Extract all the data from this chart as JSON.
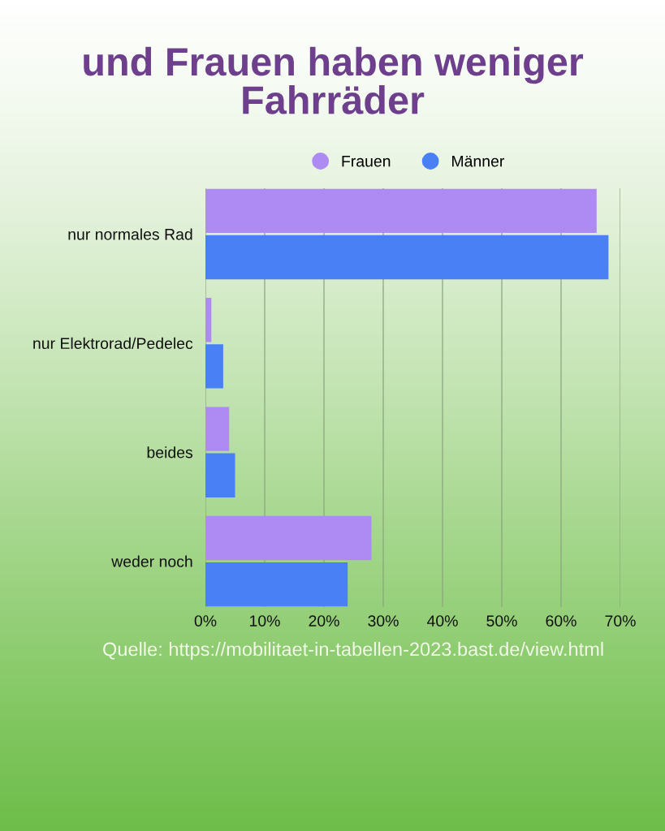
{
  "chart_data": {
    "type": "bar",
    "orientation": "horizontal",
    "title": "und Frauen haben weniger Fahrräder",
    "categories": [
      "nur normales Rad",
      "nur Elektrorad/Pedelec",
      "beides",
      "weder noch"
    ],
    "series": [
      {
        "name": "Frauen",
        "color": "#ad8bf3",
        "values": [
          66,
          1,
          4,
          28
        ]
      },
      {
        "name": "Männer",
        "color": "#4a80f5",
        "values": [
          68,
          3,
          5,
          24
        ]
      }
    ],
    "xlim": [
      0,
      70
    ],
    "xticks": [
      {
        "value": 0,
        "label": "0%"
      },
      {
        "value": 10,
        "label": "10%"
      },
      {
        "value": 20,
        "label": "20%"
      },
      {
        "value": 30,
        "label": "30%"
      },
      {
        "value": 40,
        "label": "40%"
      },
      {
        "value": 50,
        "label": "50%"
      },
      {
        "value": 60,
        "label": "60%"
      },
      {
        "value": 70,
        "label": "70%"
      }
    ],
    "grid": "x",
    "legend": "top",
    "annotations": [
      "Quelle: https://mobilitaet-in-tabellen-2023.bast.de/view.html"
    ]
  }
}
